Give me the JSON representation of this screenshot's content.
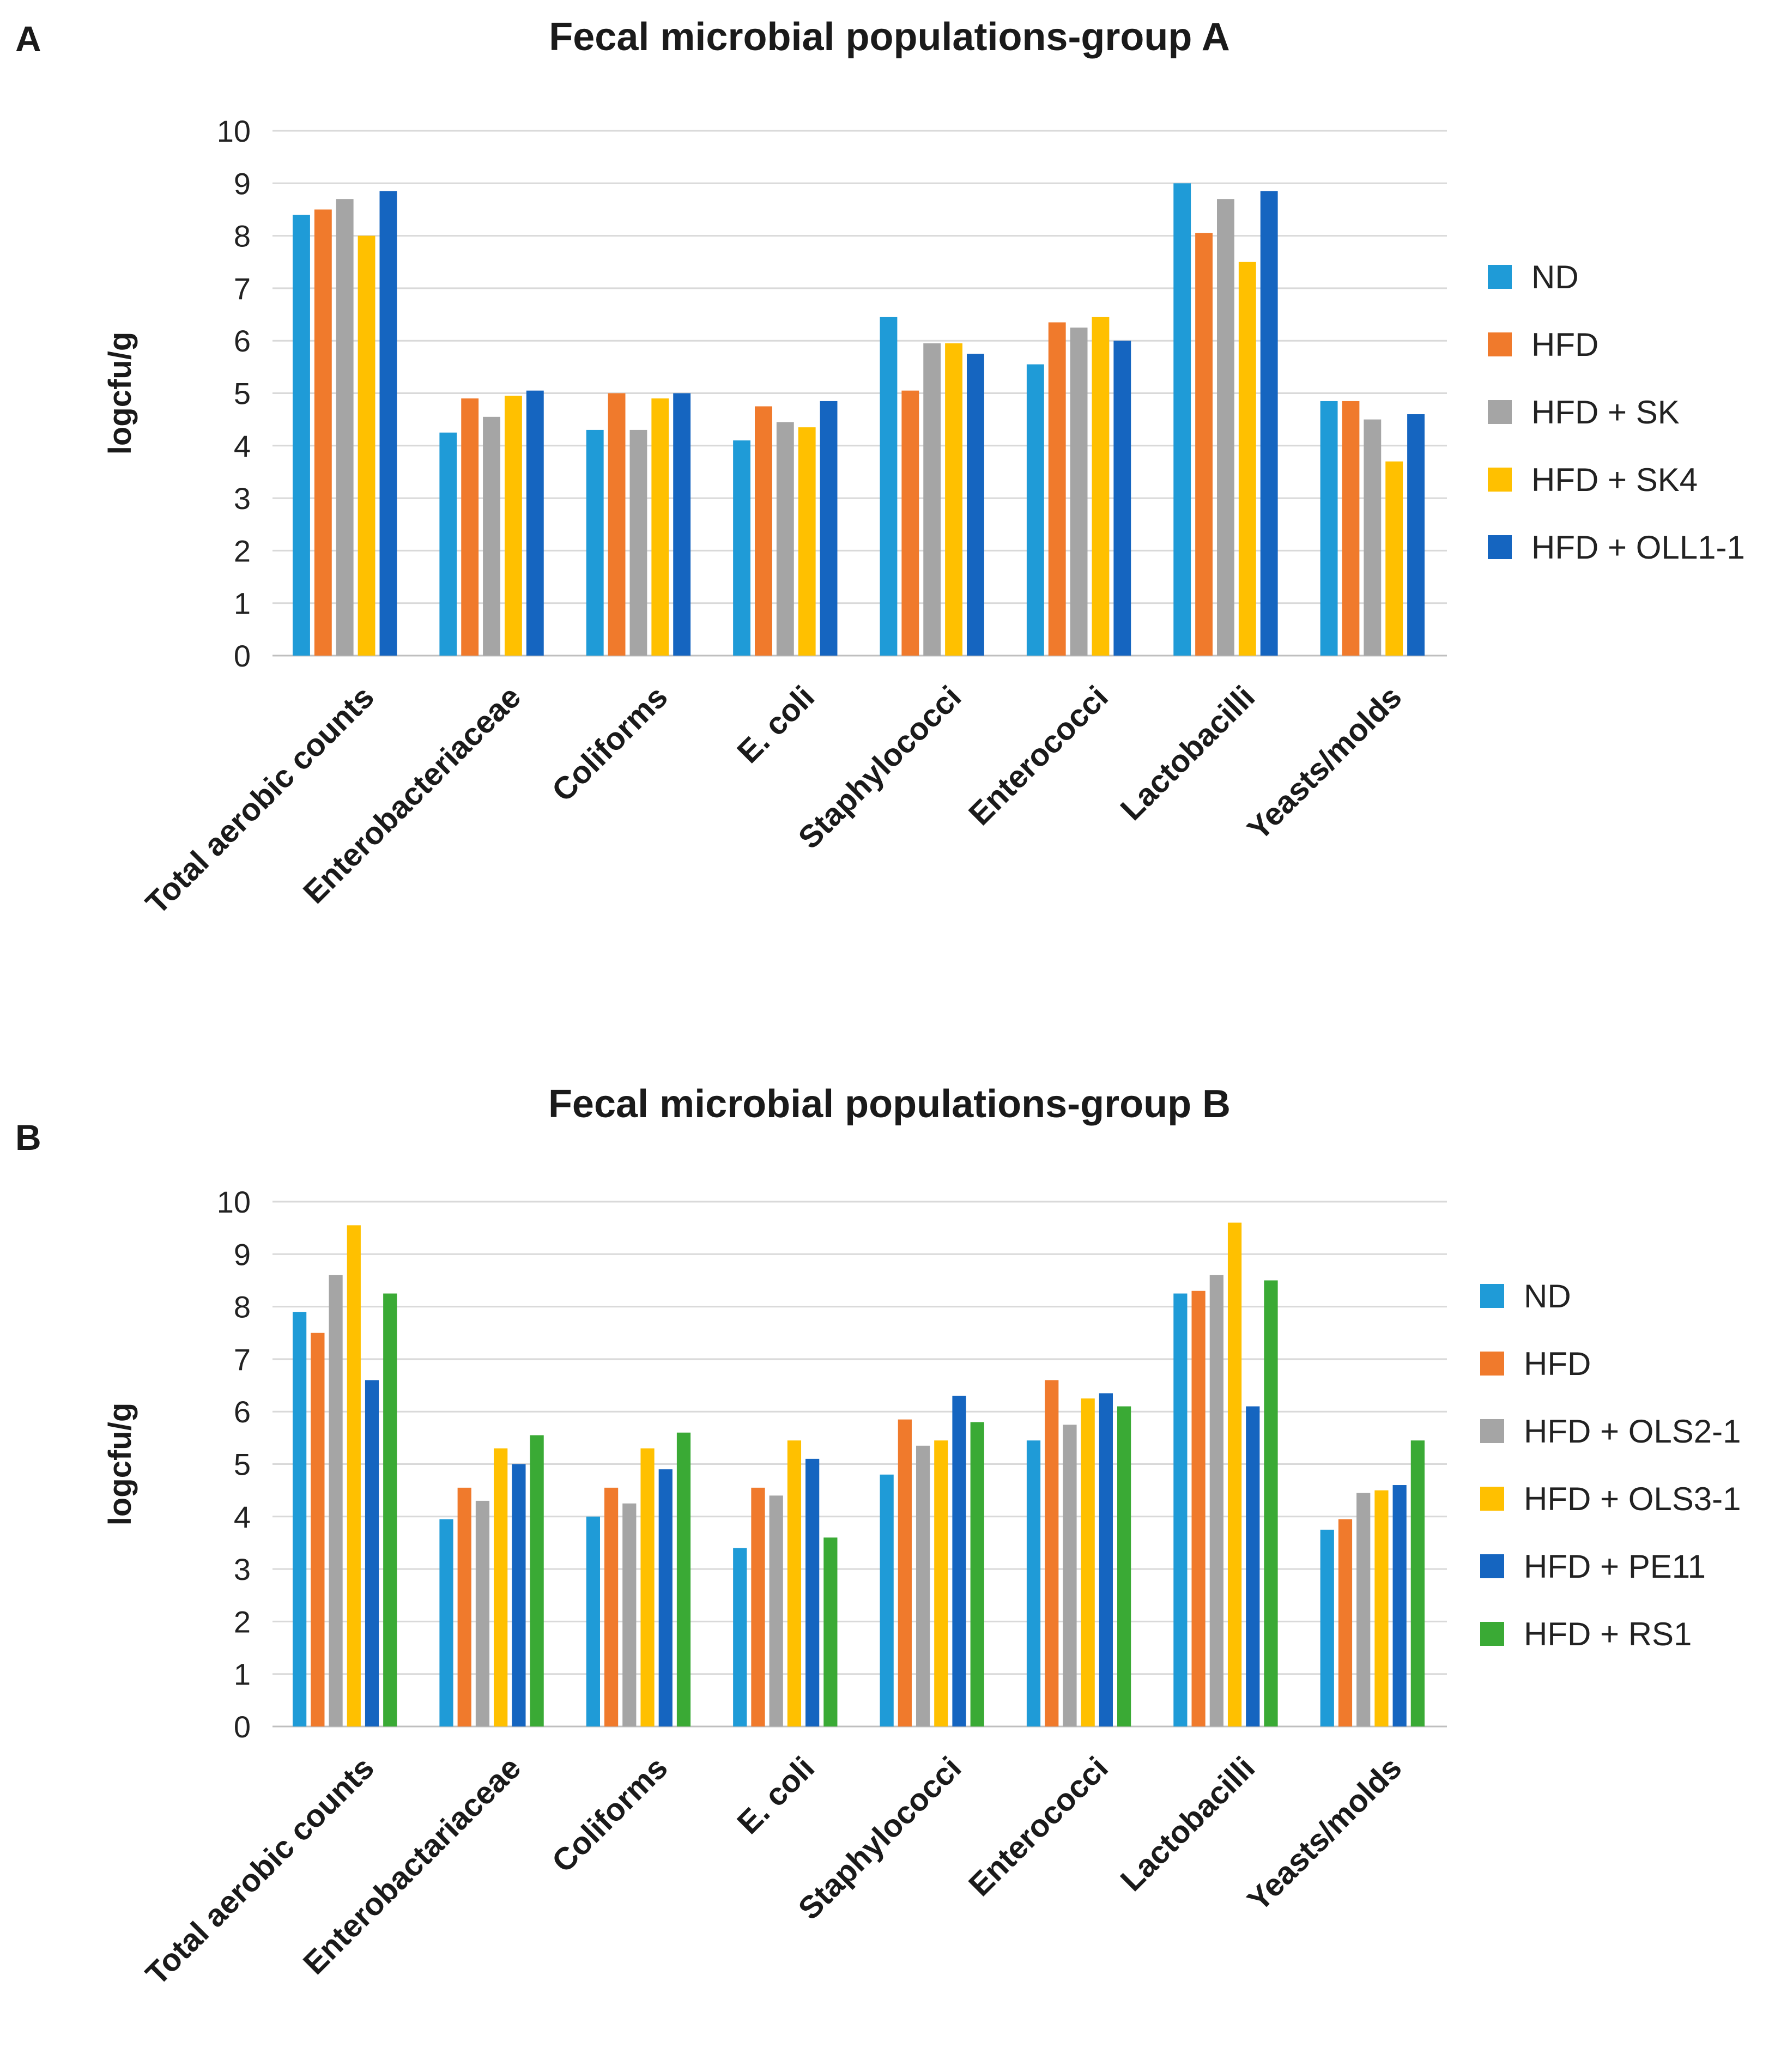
{
  "chart_data": [
    {
      "panel": "A",
      "type": "bar",
      "title": "Fecal microbial populations-group A",
      "xlabel": "",
      "ylabel": "logcfu/g",
      "ylim": [
        0,
        10
      ],
      "yticks": [
        0,
        1,
        2,
        3,
        4,
        5,
        6,
        7,
        8,
        9,
        10
      ],
      "grid": true,
      "legend": "right",
      "categories": [
        "Total aerobic counts",
        "Enterobacteriaceae",
        "Coliforms",
        "E. coli",
        "Staphylococci",
        "Enterococci",
        "Lactobacilli",
        "Yeasts/molds"
      ],
      "series": [
        {
          "name": "ND",
          "color": "#1f9bd7",
          "values": [
            8.4,
            4.25,
            4.3,
            4.1,
            6.45,
            5.55,
            9.0,
            4.85
          ]
        },
        {
          "name": "HFD",
          "color": "#f07a2c",
          "values": [
            8.5,
            4.9,
            5.0,
            4.75,
            5.05,
            6.35,
            8.05,
            4.85
          ]
        },
        {
          "name": "HFD + SK",
          "color": "#a5a5a5",
          "values": [
            8.7,
            4.55,
            4.3,
            4.45,
            5.95,
            6.25,
            8.7,
            4.5
          ]
        },
        {
          "name": "HFD + SK4",
          "color": "#ffc000",
          "values": [
            8.0,
            4.95,
            4.9,
            4.35,
            5.95,
            6.45,
            7.5,
            3.7
          ]
        },
        {
          "name": "HFD + OLL1-1",
          "color": "#1565c0",
          "values": [
            8.85,
            5.05,
            5.0,
            4.85,
            5.75,
            6.0,
            8.85,
            4.6
          ]
        }
      ]
    },
    {
      "panel": "B",
      "type": "bar",
      "title": "Fecal microbial populations-group B",
      "xlabel": "",
      "ylabel": "logcfu/g",
      "ylim": [
        0,
        10
      ],
      "yticks": [
        0,
        1,
        2,
        3,
        4,
        5,
        6,
        7,
        8,
        9,
        10
      ],
      "grid": true,
      "legend": "right",
      "categories": [
        "Total aerobic counts",
        "Enterobactariaceae",
        "Coliforms",
        "E. coli",
        "Staphylococci",
        "Enterococci",
        "Lactobacilli",
        "Yeasts/molds"
      ],
      "series": [
        {
          "name": "ND",
          "color": "#1f9bd7",
          "values": [
            7.9,
            3.95,
            4.0,
            3.4,
            4.8,
            5.45,
            8.25,
            3.75
          ]
        },
        {
          "name": "HFD",
          "color": "#f07a2c",
          "values": [
            7.5,
            4.55,
            4.55,
            4.55,
            5.85,
            6.6,
            8.3,
            3.95
          ]
        },
        {
          "name": "HFD + OLS2-1",
          "color": "#a5a5a5",
          "values": [
            8.6,
            4.3,
            4.25,
            4.4,
            5.35,
            5.75,
            8.6,
            4.45
          ]
        },
        {
          "name": "HFD + OLS3-1",
          "color": "#ffc000",
          "values": [
            9.55,
            5.3,
            5.3,
            5.45,
            5.45,
            6.25,
            9.6,
            4.5
          ]
        },
        {
          "name": "HFD + PE11",
          "color": "#1565c0",
          "values": [
            6.6,
            5.0,
            4.9,
            5.1,
            6.3,
            6.35,
            6.1,
            4.6
          ]
        },
        {
          "name": "HFD + RS1",
          "color": "#3aaa35",
          "values": [
            8.25,
            5.55,
            5.6,
            3.6,
            5.8,
            6.1,
            8.5,
            5.45
          ]
        }
      ]
    }
  ]
}
